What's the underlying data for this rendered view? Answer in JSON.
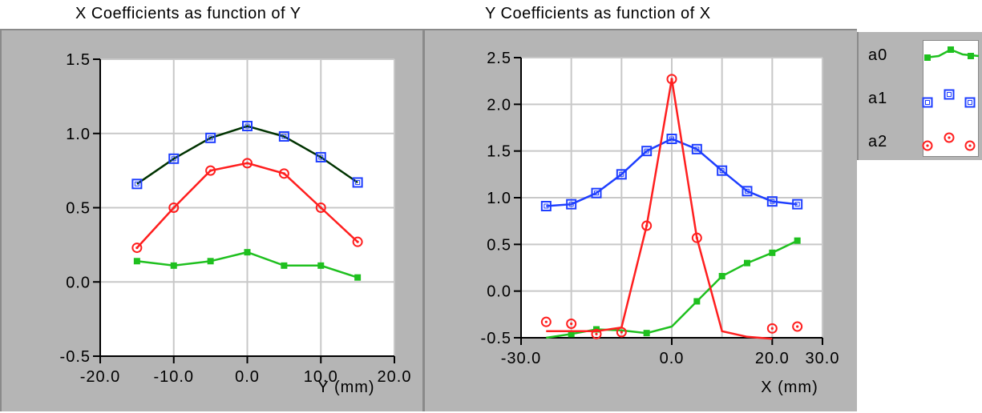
{
  "chart_data": [
    {
      "type": "line",
      "title": "X Coefficients as function of Y",
      "xlabel": "Y (mm)",
      "ylabel": "",
      "xlim": [
        -20,
        20
      ],
      "ylim": [
        -0.5,
        1.5
      ],
      "grid": true,
      "xticks": [
        "-20.0",
        "-10.0",
        "0.0",
        "10.0",
        "20.0"
      ],
      "yticks": [
        "-0.5",
        "0.0",
        "0.5",
        "1.0",
        "1.5"
      ],
      "series": [
        {
          "name": "a0",
          "color": "#1fc01f",
          "marker": "square-filled",
          "x": [
            -15,
            -10,
            -5,
            0,
            5,
            10,
            15
          ],
          "y": [
            0.14,
            0.11,
            0.14,
            0.2,
            0.11,
            0.11,
            0.03
          ],
          "fit_x": [
            -15,
            -10,
            -5,
            0,
            5,
            10,
            15
          ],
          "fit_y": [
            0.14,
            0.11,
            0.14,
            0.2,
            0.11,
            0.11,
            0.03
          ]
        },
        {
          "name": "a1",
          "color": "#1f3fff",
          "line_color": "#003300",
          "marker": "square-open",
          "x": [
            -15,
            -10,
            -5,
            0,
            5,
            10,
            15
          ],
          "y": [
            0.66,
            0.83,
            0.97,
            1.05,
            0.98,
            0.84,
            0.67
          ],
          "fit_x": [
            -15,
            -10,
            -5,
            0,
            5,
            10,
            15
          ],
          "fit_y": [
            0.66,
            0.83,
            0.97,
            1.05,
            0.98,
            0.84,
            0.67
          ]
        },
        {
          "name": "a2",
          "color": "#ff1f1f",
          "marker": "circle-dot",
          "x": [
            -15,
            -10,
            -5,
            0,
            5,
            10,
            15
          ],
          "y": [
            0.23,
            0.5,
            0.75,
            0.8,
            0.73,
            0.5,
            0.27
          ],
          "fit_x": [
            -15,
            -10,
            -5,
            0,
            5,
            10,
            15
          ],
          "fit_y": [
            0.23,
            0.5,
            0.75,
            0.8,
            0.73,
            0.5,
            0.27
          ]
        }
      ]
    },
    {
      "type": "line",
      "title": "Y Coefficients as function of X",
      "xlabel": "X (mm)",
      "ylabel": "",
      "xlim": [
        -30,
        30
      ],
      "ylim": [
        -0.5,
        2.5
      ],
      "grid": true,
      "xticks": [
        "-30.0",
        "0.0",
        "20.0",
        "30.0"
      ],
      "yticks": [
        "-0.5",
        "0.0",
        "0.5",
        "1.0",
        "1.5",
        "2.0",
        "2.5"
      ],
      "series": [
        {
          "name": "a0",
          "color": "#1fc01f",
          "marker": "square-filled",
          "x": [
            -20,
            -15,
            -5,
            5,
            10,
            15,
            20,
            25
          ],
          "y": [
            -0.46,
            -0.41,
            -0.45,
            -0.11,
            0.16,
            0.3,
            0.41,
            0.54
          ],
          "fit_x": [
            -25,
            -20,
            -15,
            -10,
            -5,
            0,
            5,
            10,
            15,
            20,
            25
          ],
          "fit_y": [
            -0.5,
            -0.46,
            -0.41,
            -0.42,
            -0.45,
            -0.38,
            -0.11,
            0.16,
            0.3,
            0.41,
            0.54
          ]
        },
        {
          "name": "a1",
          "color": "#1f3fff",
          "marker": "square-open",
          "x": [
            -25,
            -20,
            -15,
            -10,
            -5,
            0,
            5,
            10,
            15,
            20,
            25
          ],
          "y": [
            0.91,
            0.93,
            1.05,
            1.25,
            1.5,
            1.63,
            1.52,
            1.29,
            1.07,
            0.96,
            0.93
          ],
          "fit_x": [
            -25,
            -20,
            -15,
            -10,
            -5,
            0,
            5,
            10,
            15,
            20,
            25
          ],
          "fit_y": [
            0.91,
            0.93,
            1.05,
            1.25,
            1.5,
            1.63,
            1.52,
            1.29,
            1.07,
            0.96,
            0.93
          ]
        },
        {
          "name": "a2",
          "color": "#ff1f1f",
          "marker": "circle-dot",
          "x": [
            -25,
            -20,
            -15,
            -10,
            -5,
            0,
            5,
            20,
            25
          ],
          "y": [
            -0.33,
            -0.35,
            -0.46,
            -0.44,
            0.7,
            2.27,
            0.57,
            -0.4,
            -0.38
          ],
          "fit_x": [
            -25,
            -20,
            -15,
            -10,
            -5,
            0,
            5,
            10,
            15,
            20
          ],
          "fit_y": [
            -0.43,
            -0.43,
            -0.43,
            -0.39,
            0.7,
            2.27,
            0.57,
            -0.43,
            -0.49,
            -0.51
          ]
        }
      ]
    }
  ],
  "legend": {
    "items": [
      {
        "name": "a0",
        "color": "#1fc01f",
        "marker": "square-filled"
      },
      {
        "name": "a1",
        "color": "#1f3fff",
        "marker": "square-open"
      },
      {
        "name": "a2",
        "color": "#ff1f1f",
        "marker": "circle-dot"
      }
    ]
  }
}
